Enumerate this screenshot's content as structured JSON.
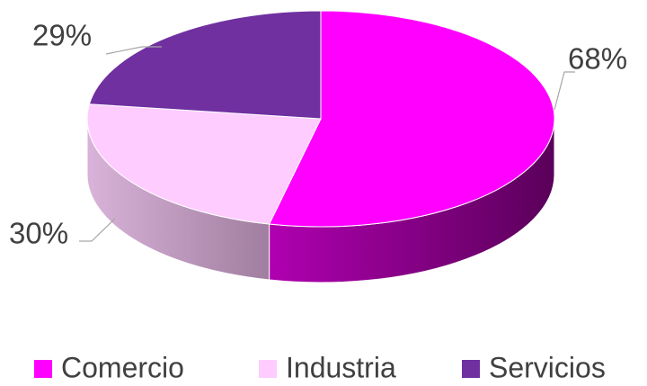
{
  "chart_data": {
    "type": "pie",
    "categories": [
      "Comercio",
      "Industria",
      "Servicios"
    ],
    "series": [
      {
        "values": [
          68,
          30,
          29
        ],
        "value_labels": [
          "68%",
          "30%",
          "29%"
        ],
        "colors": [
          "#ff00ff",
          "#ffccff",
          "#7030a0"
        ]
      }
    ],
    "legend": "bottom"
  }
}
